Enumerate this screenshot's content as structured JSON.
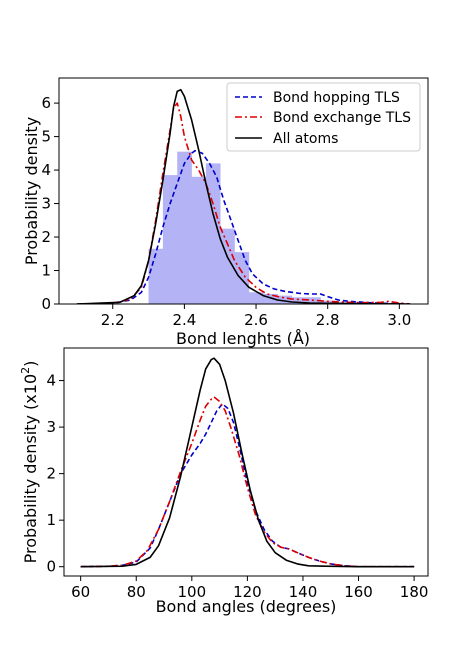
{
  "chart_data": [
    {
      "type": "line",
      "xlabel": "Bond lenghts (Å)",
      "ylabel": "Probability density",
      "xlim": [
        2.05,
        3.08
      ],
      "ylim": [
        0,
        6.75
      ],
      "xticks": [
        2.2,
        2.4,
        2.6,
        2.8,
        3.0
      ],
      "xtick_labels": [
        "2.2",
        "2.4",
        "2.6",
        "2.8",
        "3.0"
      ],
      "yticks": [
        0,
        1,
        2,
        3,
        4,
        5,
        6
      ],
      "ytick_labels": [
        "0",
        "1",
        "2",
        "3",
        "4",
        "5",
        "6"
      ],
      "legend_position": "top-right",
      "grid": false,
      "histogram": {
        "color": "#b3b3f5",
        "bins": [
          {
            "x0": 2.3,
            "x1": 2.34,
            "value": 1.65
          },
          {
            "x0": 2.34,
            "x1": 2.38,
            "value": 3.85
          },
          {
            "x0": 2.38,
            "x1": 2.42,
            "value": 4.55
          },
          {
            "x0": 2.42,
            "x1": 2.46,
            "value": 3.8
          },
          {
            "x0": 2.46,
            "x1": 2.5,
            "value": 4.2
          },
          {
            "x0": 2.5,
            "x1": 2.54,
            "value": 2.25
          },
          {
            "x0": 2.54,
            "x1": 2.58,
            "value": 1.55
          },
          {
            "x0": 2.58,
            "x1": 2.62,
            "value": 0.35
          },
          {
            "x0": 2.62,
            "x1": 2.66,
            "value": 0.3
          },
          {
            "x0": 2.66,
            "x1": 2.7,
            "value": 0.25
          },
          {
            "x0": 2.7,
            "x1": 2.74,
            "value": 0.2
          },
          {
            "x0": 2.74,
            "x1": 2.78,
            "value": 0.2
          },
          {
            "x0": 2.78,
            "x1": 2.82,
            "value": 0.1
          },
          {
            "x0": 2.82,
            "x1": 2.86,
            "value": 0.05
          },
          {
            "x0": 2.86,
            "x1": 2.9,
            "value": 0.05
          },
          {
            "x0": 2.9,
            "x1": 2.94,
            "value": 0.03
          }
        ]
      },
      "series": [
        {
          "name": "Bond hopping TLS",
          "color": "#0000cc",
          "dash": "5,3",
          "points": [
            [
              2.1,
              0
            ],
            [
              2.2,
              0.02
            ],
            [
              2.25,
              0.12
            ],
            [
              2.28,
              0.35
            ],
            [
              2.3,
              0.8
            ],
            [
              2.32,
              1.5
            ],
            [
              2.34,
              2.3
            ],
            [
              2.36,
              3.0
            ],
            [
              2.38,
              3.6
            ],
            [
              2.4,
              4.2
            ],
            [
              2.42,
              4.5
            ],
            [
              2.43,
              4.58
            ],
            [
              2.45,
              4.5
            ],
            [
              2.47,
              4.2
            ],
            [
              2.49,
              3.8
            ],
            [
              2.51,
              3.1
            ],
            [
              2.53,
              2.5
            ],
            [
              2.55,
              1.9
            ],
            [
              2.57,
              1.3
            ],
            [
              2.59,
              0.9
            ],
            [
              2.62,
              0.6
            ],
            [
              2.65,
              0.45
            ],
            [
              2.68,
              0.38
            ],
            [
              2.72,
              0.32
            ],
            [
              2.75,
              0.3
            ],
            [
              2.78,
              0.3
            ],
            [
              2.8,
              0.22
            ],
            [
              2.83,
              0.12
            ],
            [
              2.86,
              0.08
            ],
            [
              2.9,
              0.05
            ],
            [
              2.95,
              0.02
            ],
            [
              3.0,
              0.01
            ],
            [
              3.03,
              0
            ]
          ]
        },
        {
          "name": "Bond exchange TLS",
          "color": "#dd0000",
          "dash": "7,3,2,3",
          "points": [
            [
              2.1,
              0
            ],
            [
              2.2,
              0.02
            ],
            [
              2.25,
              0.15
            ],
            [
              2.28,
              0.5
            ],
            [
              2.3,
              1.3
            ],
            [
              2.32,
              2.5
            ],
            [
              2.34,
              3.9
            ],
            [
              2.36,
              5.2
            ],
            [
              2.37,
              5.85
            ],
            [
              2.38,
              6.0
            ],
            [
              2.39,
              5.6
            ],
            [
              2.4,
              5.0
            ],
            [
              2.42,
              4.3
            ],
            [
              2.44,
              4.0
            ],
            [
              2.46,
              3.6
            ],
            [
              2.48,
              3.0
            ],
            [
              2.5,
              2.3
            ],
            [
              2.52,
              1.8
            ],
            [
              2.54,
              1.3
            ],
            [
              2.57,
              0.8
            ],
            [
              2.6,
              0.5
            ],
            [
              2.63,
              0.3
            ],
            [
              2.67,
              0.2
            ],
            [
              2.7,
              0.15
            ],
            [
              2.75,
              0.12
            ],
            [
              2.8,
              0.08
            ],
            [
              2.85,
              0.05
            ],
            [
              2.9,
              0.04
            ],
            [
              2.95,
              0.05
            ],
            [
              2.97,
              0.08
            ],
            [
              3.0,
              0.03
            ],
            [
              3.03,
              0
            ]
          ]
        },
        {
          "name": "All atoms",
          "color": "#000000",
          "dash": "",
          "points": [
            [
              2.1,
              0
            ],
            [
              2.22,
              0.05
            ],
            [
              2.26,
              0.25
            ],
            [
              2.28,
              0.55
            ],
            [
              2.3,
              1.3
            ],
            [
              2.32,
              2.4
            ],
            [
              2.34,
              3.7
            ],
            [
              2.36,
              5.1
            ],
            [
              2.37,
              5.9
            ],
            [
              2.38,
              6.35
            ],
            [
              2.39,
              6.4
            ],
            [
              2.4,
              6.2
            ],
            [
              2.42,
              5.5
            ],
            [
              2.44,
              4.6
            ],
            [
              2.46,
              3.6
            ],
            [
              2.48,
              2.7
            ],
            [
              2.5,
              1.95
            ],
            [
              2.52,
              1.4
            ],
            [
              2.55,
              0.85
            ],
            [
              2.58,
              0.5
            ],
            [
              2.62,
              0.25
            ],
            [
              2.66,
              0.12
            ],
            [
              2.7,
              0.06
            ],
            [
              2.75,
              0.03
            ],
            [
              2.8,
              0.02
            ],
            [
              2.9,
              0.01
            ],
            [
              3.03,
              0
            ]
          ]
        }
      ]
    },
    {
      "type": "line",
      "xlabel": "Bond angles (degrees)",
      "ylabel_main": "Probability density (x10",
      "ylabel_sup": "2",
      "ylabel_end": ")",
      "xlim": [
        54,
        185
      ],
      "ylim": [
        -0.2,
        4.7
      ],
      "xticks": [
        60,
        80,
        100,
        120,
        140,
        160,
        180
      ],
      "xtick_labels": [
        "60",
        "80",
        "100",
        "120",
        "140",
        "160",
        "180"
      ],
      "yticks": [
        0,
        1,
        2,
        3,
        4
      ],
      "ytick_labels": [
        "0",
        "1",
        "2",
        "3",
        "4"
      ],
      "grid": false,
      "series": [
        {
          "color": "#0000cc",
          "dash": "5,3",
          "points": [
            [
              60,
              0
            ],
            [
              70,
              0.01
            ],
            [
              75,
              0.03
            ],
            [
              80,
              0.1
            ],
            [
              85,
              0.4
            ],
            [
              88,
              0.8
            ],
            [
              92,
              1.4
            ],
            [
              96,
              2.0
            ],
            [
              100,
              2.4
            ],
            [
              103,
              2.65
            ],
            [
              105,
              2.85
            ],
            [
              107,
              3.1
            ],
            [
              109,
              3.35
            ],
            [
              111,
              3.5
            ],
            [
              113,
              3.4
            ],
            [
              115,
              3.1
            ],
            [
              117,
              2.6
            ],
            [
              120,
              1.8
            ],
            [
              123,
              1.2
            ],
            [
              126,
              0.8
            ],
            [
              129,
              0.55
            ],
            [
              132,
              0.42
            ],
            [
              135,
              0.38
            ],
            [
              138,
              0.3
            ],
            [
              142,
              0.2
            ],
            [
              146,
              0.12
            ],
            [
              150,
              0.06
            ],
            [
              155,
              0.02
            ],
            [
              160,
              0
            ],
            [
              180,
              0
            ]
          ]
        },
        {
          "color": "#dd0000",
          "dash": "7,3,2,3",
          "points": [
            [
              60,
              0
            ],
            [
              70,
              0.01
            ],
            [
              75,
              0.03
            ],
            [
              80,
              0.12
            ],
            [
              84,
              0.35
            ],
            [
              88,
              0.8
            ],
            [
              92,
              1.4
            ],
            [
              96,
              2.05
            ],
            [
              100,
              2.65
            ],
            [
              103,
              3.15
            ],
            [
              105,
              3.45
            ],
            [
              107,
              3.6
            ],
            [
              108,
              3.65
            ],
            [
              110,
              3.55
            ],
            [
              112,
              3.35
            ],
            [
              114,
              3.0
            ],
            [
              117,
              2.4
            ],
            [
              120,
              1.7
            ],
            [
              123,
              1.1
            ],
            [
              126,
              0.75
            ],
            [
              129,
              0.52
            ],
            [
              132,
              0.42
            ],
            [
              135,
              0.38
            ],
            [
              138,
              0.3
            ],
            [
              142,
              0.2
            ],
            [
              146,
              0.12
            ],
            [
              150,
              0.06
            ],
            [
              155,
              0.02
            ],
            [
              160,
              0
            ],
            [
              180,
              0
            ]
          ]
        },
        {
          "color": "#000000",
          "dash": "",
          "points": [
            [
              60,
              0
            ],
            [
              75,
              0.01
            ],
            [
              80,
              0.05
            ],
            [
              85,
              0.2
            ],
            [
              88,
              0.45
            ],
            [
              92,
              1.05
            ],
            [
              96,
              1.95
            ],
            [
              100,
              3.0
            ],
            [
              103,
              3.8
            ],
            [
              105,
              4.25
            ],
            [
              107,
              4.45
            ],
            [
              108,
              4.48
            ],
            [
              110,
              4.35
            ],
            [
              112,
              4.0
            ],
            [
              115,
              3.3
            ],
            [
              118,
              2.45
            ],
            [
              121,
              1.65
            ],
            [
              124,
              1.0
            ],
            [
              127,
              0.55
            ],
            [
              130,
              0.3
            ],
            [
              134,
              0.14
            ],
            [
              138,
              0.06
            ],
            [
              142,
              0.02
            ],
            [
              148,
              0.01
            ],
            [
              160,
              0
            ],
            [
              180,
              0
            ]
          ]
        }
      ]
    }
  ]
}
